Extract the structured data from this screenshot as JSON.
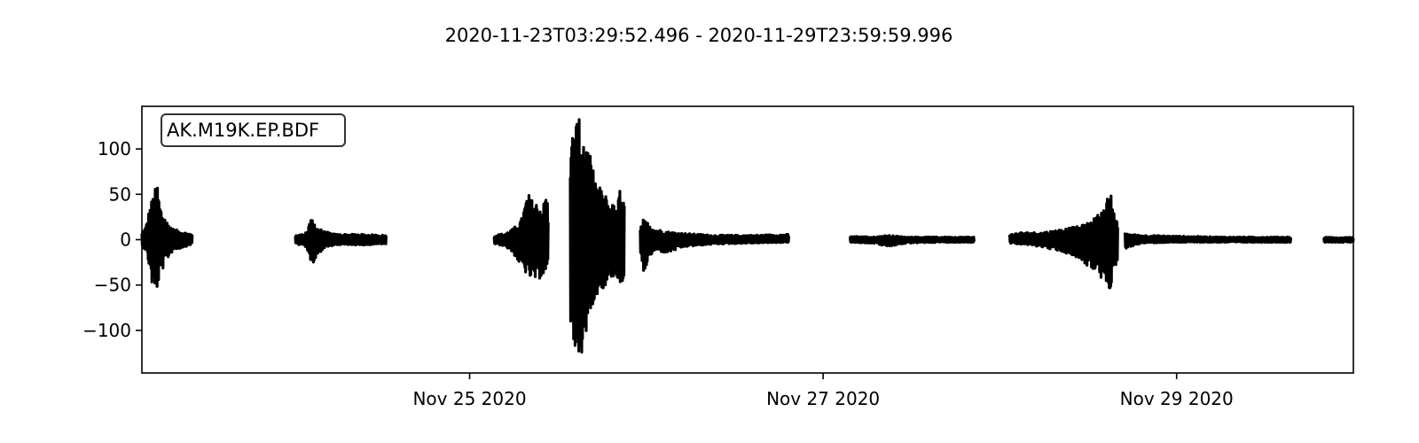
{
  "chart_data": {
    "type": "line",
    "title": "2020-11-23T03:29:52.496  -  2020-11-29T23:59:59.996",
    "xlabel": "",
    "ylabel": "",
    "legend": "AK.M19K.EP.BDF",
    "legend_position": "top-left",
    "x_range": [
      "2020-11-23T03:29:52.496",
      "2020-11-29T23:59:59.996"
    ],
    "ylim": [
      -147,
      147
    ],
    "x_tick_labels": [
      {
        "date": "2020-11-25T00:00:00",
        "label": "Nov 25 2020"
      },
      {
        "date": "2020-11-27T00:00:00",
        "label": "Nov 27 2020"
      },
      {
        "date": "2020-11-29T00:00:00",
        "label": "Nov 29 2020"
      }
    ],
    "y_ticks": [
      100,
      50,
      0,
      -50,
      -100
    ],
    "y_tick_labels": [
      "100",
      "50",
      "0",
      "−50",
      "−100"
    ],
    "line_color": "#000000",
    "grid": false,
    "segments": [
      {
        "start": "2020-11-23T03:29:52",
        "end": "2020-11-23T10:20:00",
        "envelope": [
          [
            0,
            8,
            -8
          ],
          [
            0.08,
            15,
            -12
          ],
          [
            0.14,
            32,
            -28
          ],
          [
            0.2,
            45,
            -50
          ],
          [
            0.26,
            55,
            -62
          ],
          [
            0.3,
            66,
            -55
          ],
          [
            0.36,
            38,
            -40
          ],
          [
            0.42,
            30,
            -32
          ],
          [
            0.5,
            20,
            -22
          ],
          [
            0.62,
            12,
            -12
          ],
          [
            0.8,
            9,
            -9
          ],
          [
            1,
            6,
            -5
          ]
        ]
      },
      {
        "start": "2020-11-24T00:20:00",
        "end": "2020-11-24T12:40:00",
        "envelope": [
          [
            0,
            5,
            -5
          ],
          [
            0.08,
            6,
            -6
          ],
          [
            0.13,
            10,
            -10
          ],
          [
            0.18,
            24,
            -33
          ],
          [
            0.24,
            14,
            -18
          ],
          [
            0.32,
            9,
            -9
          ],
          [
            0.45,
            6,
            -6
          ],
          [
            0.7,
            6,
            -6
          ],
          [
            1,
            5,
            -5
          ]
        ]
      },
      {
        "start": "2020-11-25T03:20:00",
        "end": "2020-11-25T10:40:00",
        "envelope": [
          [
            0,
            5,
            -5
          ],
          [
            0.2,
            7,
            -7
          ],
          [
            0.35,
            12,
            -15
          ],
          [
            0.5,
            22,
            -30
          ],
          [
            0.62,
            52,
            -40
          ],
          [
            0.7,
            44,
            -45
          ],
          [
            0.8,
            40,
            -45
          ],
          [
            0.9,
            35,
            -40
          ],
          [
            0.97,
            58,
            -42
          ],
          [
            1,
            30,
            -30
          ]
        ]
      },
      {
        "start": "2020-11-25T13:40:00",
        "end": "2020-11-25T21:00:00",
        "envelope": [
          [
            0,
            85,
            -95
          ],
          [
            0.05,
            130,
            -120
          ],
          [
            0.12,
            133,
            -125
          ],
          [
            0.2,
            132,
            -134
          ],
          [
            0.28,
            115,
            -108
          ],
          [
            0.36,
            95,
            -82
          ],
          [
            0.45,
            70,
            -65
          ],
          [
            0.55,
            58,
            -56
          ],
          [
            0.65,
            50,
            -52
          ],
          [
            0.75,
            40,
            -42
          ],
          [
            0.85,
            42,
            -40
          ],
          [
            0.95,
            60,
            -52
          ],
          [
            1,
            55,
            -45
          ]
        ]
      },
      {
        "start": "2020-11-25T23:10:00",
        "end": "2020-11-26T19:20:00",
        "envelope": [
          [
            0,
            12,
            -14
          ],
          [
            0.02,
            22,
            -40
          ],
          [
            0.06,
            18,
            -20
          ],
          [
            0.1,
            12,
            -12
          ],
          [
            0.18,
            9,
            -15
          ],
          [
            0.3,
            7,
            -8
          ],
          [
            0.5,
            5,
            -5
          ],
          [
            0.75,
            5,
            -4
          ],
          [
            1,
            6,
            -3
          ]
        ]
      },
      {
        "start": "2020-11-27T03:40:00",
        "end": "2020-11-27T20:30:00",
        "envelope": [
          [
            0,
            4,
            -3
          ],
          [
            0.2,
            3,
            -4
          ],
          [
            0.3,
            5,
            -8
          ],
          [
            0.45,
            3,
            -4
          ],
          [
            0.7,
            3,
            -3
          ],
          [
            1,
            3,
            -3
          ]
        ]
      },
      {
        "start": "2020-11-28T01:20:00",
        "end": "2020-11-28T16:00:00",
        "envelope": [
          [
            0,
            6,
            -4
          ],
          [
            0.1,
            8,
            -5
          ],
          [
            0.3,
            8,
            -8
          ],
          [
            0.5,
            12,
            -14
          ],
          [
            0.65,
            15,
            -22
          ],
          [
            0.75,
            20,
            -32
          ],
          [
            0.82,
            28,
            -38
          ],
          [
            0.88,
            35,
            -50
          ],
          [
            0.93,
            58,
            -55
          ],
          [
            0.97,
            30,
            -30
          ],
          [
            1,
            20,
            -25
          ]
        ]
      },
      {
        "start": "2020-11-28T17:00:00",
        "end": "2020-11-29T15:30:00",
        "envelope": [
          [
            0,
            8,
            -10
          ],
          [
            0.03,
            6,
            -8
          ],
          [
            0.1,
            5,
            -4
          ],
          [
            0.3,
            4,
            -3
          ],
          [
            0.6,
            3,
            -3
          ],
          [
            1,
            3,
            -3
          ]
        ]
      },
      {
        "start": "2020-11-29T20:00:00",
        "end": "2020-11-29T23:59:59",
        "envelope": [
          [
            0,
            3,
            -3
          ],
          [
            0.5,
            2,
            -3
          ],
          [
            1,
            3,
            -3
          ]
        ]
      }
    ]
  }
}
